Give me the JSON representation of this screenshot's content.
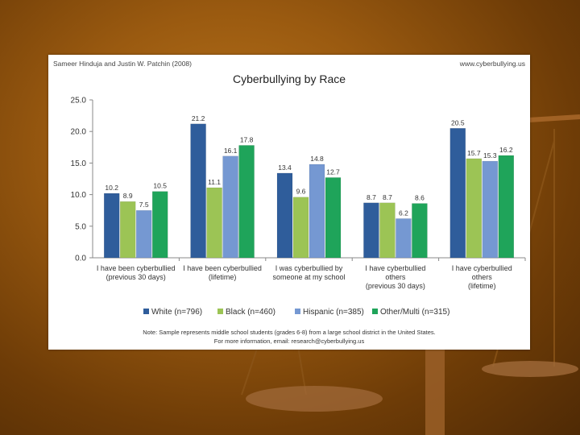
{
  "header": {
    "citation": "Sameer Hinduja and Justin W. Patchin (2008)",
    "website": "www.cyberbullying.us"
  },
  "footer": {
    "note": "Note: Sample represents middle school students (grades 6-8) from a large school district in the United States.",
    "contact": "For more information, email: research@cyberbullying.us"
  },
  "chart_data": {
    "type": "bar",
    "title": "Cyberbullying by Race",
    "xlabel": "",
    "ylabel": "",
    "ylim": [
      0,
      25
    ],
    "yticks": [
      "0.0",
      "5.0",
      "10.0",
      "15.0",
      "20.0",
      "25.0"
    ],
    "categories": [
      [
        "I have been cyberbullied",
        "(previous 30 days)"
      ],
      [
        "I have been cyberbullied",
        "(lifetime)"
      ],
      [
        "I was cyberbullied by",
        "someone at my school"
      ],
      [
        "I have cyberbullied",
        "others",
        "(previous 30 days)"
      ],
      [
        "I have cyberbullied",
        "others",
        "(lifetime)"
      ]
    ],
    "series": [
      {
        "name": "White (n=796)",
        "values": [
          10.2,
          21.2,
          13.4,
          8.7,
          20.5
        ],
        "color": "#2f5d9b"
      },
      {
        "name": "Black (n=460)",
        "values": [
          8.9,
          11.1,
          9.6,
          8.7,
          15.7
        ],
        "color": "#9cc455"
      },
      {
        "name": "Hispanic (n=385)",
        "values": [
          7.5,
          16.1,
          14.8,
          6.2,
          15.3
        ],
        "color": "#7598d2"
      },
      {
        "name": "Other/Multi (n=315)",
        "values": [
          10.5,
          17.8,
          12.7,
          8.6,
          16.2
        ],
        "color": "#1fa45a"
      }
    ],
    "grid": false,
    "legend": "bottom"
  }
}
